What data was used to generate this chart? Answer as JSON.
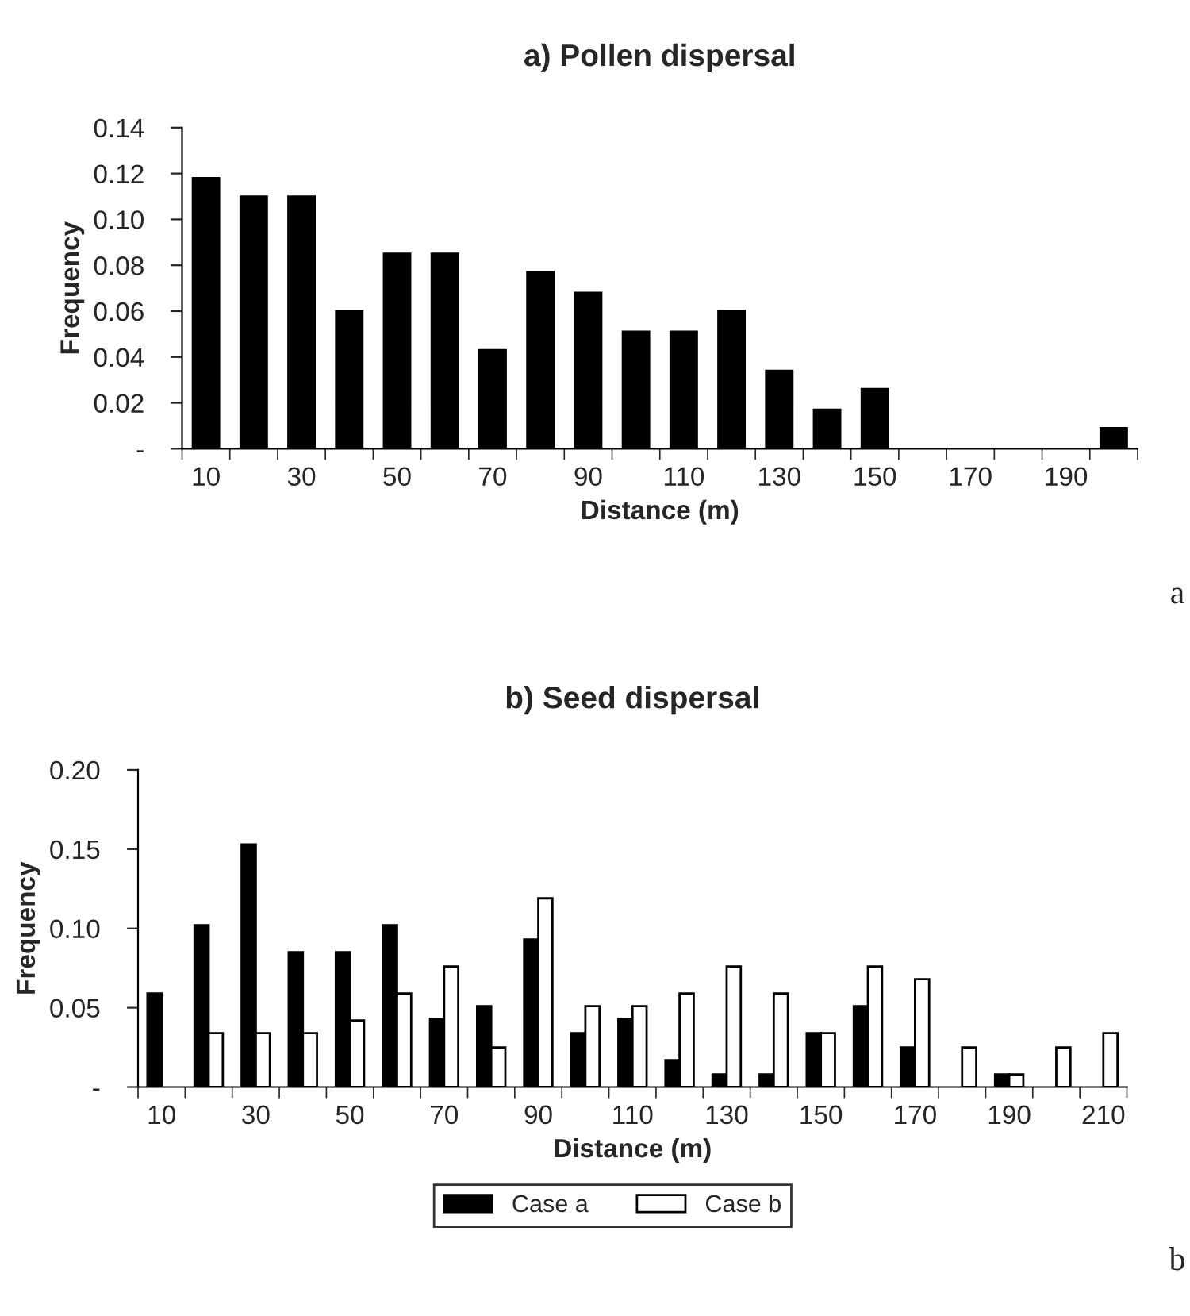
{
  "chart_data": [
    {
      "type": "bar",
      "title": "a) Pollen dispersal",
      "xlabel": "Distance (m)",
      "ylabel": "Frequency",
      "categories": [
        "10",
        null,
        "30",
        null,
        "50",
        null,
        "70",
        null,
        "90",
        null,
        "110",
        null,
        "130",
        null,
        "150",
        null,
        "170",
        null,
        "190",
        null
      ],
      "series": [
        {
          "color": "#000000",
          "values": [
            0.118,
            0.11,
            0.11,
            0.06,
            0.085,
            0.085,
            0.043,
            0.077,
            0.068,
            0.051,
            0.051,
            0.06,
            0.034,
            0.017,
            0.026,
            0,
            0,
            0,
            0,
            0.009
          ]
        }
      ],
      "ylim": [
        0,
        0.14
      ],
      "yticks": [
        {
          "value": 0,
          "label": "-"
        },
        0.02,
        0.04,
        0.06,
        0.08,
        {
          "value": 0.1,
          "label": "0.10"
        },
        0.12,
        0.14
      ],
      "grid": false,
      "annotations": [
        "a"
      ]
    },
    {
      "type": "bar",
      "title": "b) Seed dispersal",
      "xlabel": "Distance (m)",
      "ylabel": "Frequency",
      "categories": [
        "10",
        null,
        "30",
        null,
        "50",
        null,
        "70",
        null,
        "90",
        null,
        "110",
        null,
        "130",
        null,
        "150",
        null,
        "170",
        null,
        "190",
        null,
        "210"
      ],
      "series": [
        {
          "name": "Case a",
          "color": "#000000",
          "values": [
            0.059,
            0.102,
            0.153,
            0.085,
            0.085,
            0.102,
            0.043,
            0.051,
            0.093,
            0.034,
            0.043,
            0.017,
            0.008,
            0.008,
            0.034,
            0.051,
            0.025,
            0,
            0.008,
            0,
            0
          ]
        },
        {
          "name": "Case b",
          "color": "#ffffff",
          "values": [
            0,
            0.034,
            0.034,
            0.034,
            0.042,
            0.059,
            0.076,
            0.025,
            0.119,
            0.051,
            0.051,
            0.059,
            0.076,
            0.059,
            0.034,
            0.076,
            0.068,
            0.025,
            0.008,
            0.025,
            0.034
          ]
        }
      ],
      "ylim": [
        0,
        0.2
      ],
      "yticks": [
        {
          "value": 0,
          "label": "-"
        },
        0.05,
        {
          "value": 0.1,
          "label": "0.10"
        },
        0.15,
        {
          "value": 0.2,
          "label": "0.20"
        }
      ],
      "grid": false,
      "legend": "bottom",
      "annotations": [
        "b"
      ]
    }
  ]
}
